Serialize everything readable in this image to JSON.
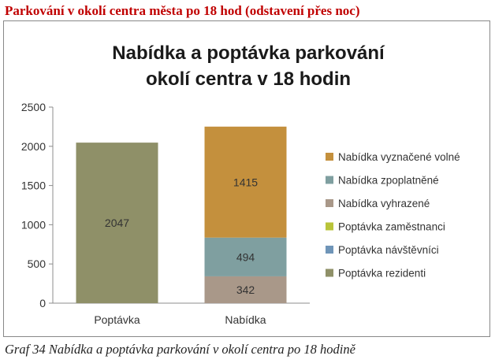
{
  "heading": "Parkování v okolí centra města po 18 hod (odstavení přes noc)",
  "caption": "Graf 34 Nabídka a poptávka parkování v okolí centra po 18 hodině",
  "chart_data": {
    "type": "bar",
    "stacked": true,
    "title_lines": [
      "Nabídka a poptávka parkování",
      "okolí centra v 18 hodin"
    ],
    "categories": [
      "Poptávka",
      "Nabídka"
    ],
    "ylim": [
      0,
      2500
    ],
    "yticks": [
      "0",
      "500",
      "1000",
      "1500",
      "2000",
      "2500"
    ],
    "grid": false,
    "legend_position": "right",
    "series": [
      {
        "name": "Poptávka rezidenti",
        "values": [
          2047,
          0
        ],
        "color": "#8f9068",
        "labels": [
          "2047",
          ""
        ]
      },
      {
        "name": "Poptávka návštěvníci",
        "values": [
          0,
          0
        ],
        "color": "#6f95b8",
        "labels": [
          "",
          ""
        ]
      },
      {
        "name": "Poptávka zaměstnanci",
        "values": [
          0,
          0
        ],
        "color": "#b9c43a",
        "labels": [
          "",
          ""
        ]
      },
      {
        "name": "Nabídka vyhrazené",
        "values": [
          0,
          342
        ],
        "color": "#a99889",
        "labels": [
          "",
          "342"
        ]
      },
      {
        "name": "Nabídka zpoplatněné",
        "values": [
          0,
          494
        ],
        "color": "#7f9fa0",
        "labels": [
          "",
          "494"
        ]
      },
      {
        "name": "Nabídka vyznačené volné",
        "values": [
          0,
          1415
        ],
        "color": "#c4903d",
        "labels": [
          "",
          "1415"
        ]
      }
    ],
    "legend_order": [
      5,
      4,
      3,
      2,
      1,
      0
    ]
  }
}
